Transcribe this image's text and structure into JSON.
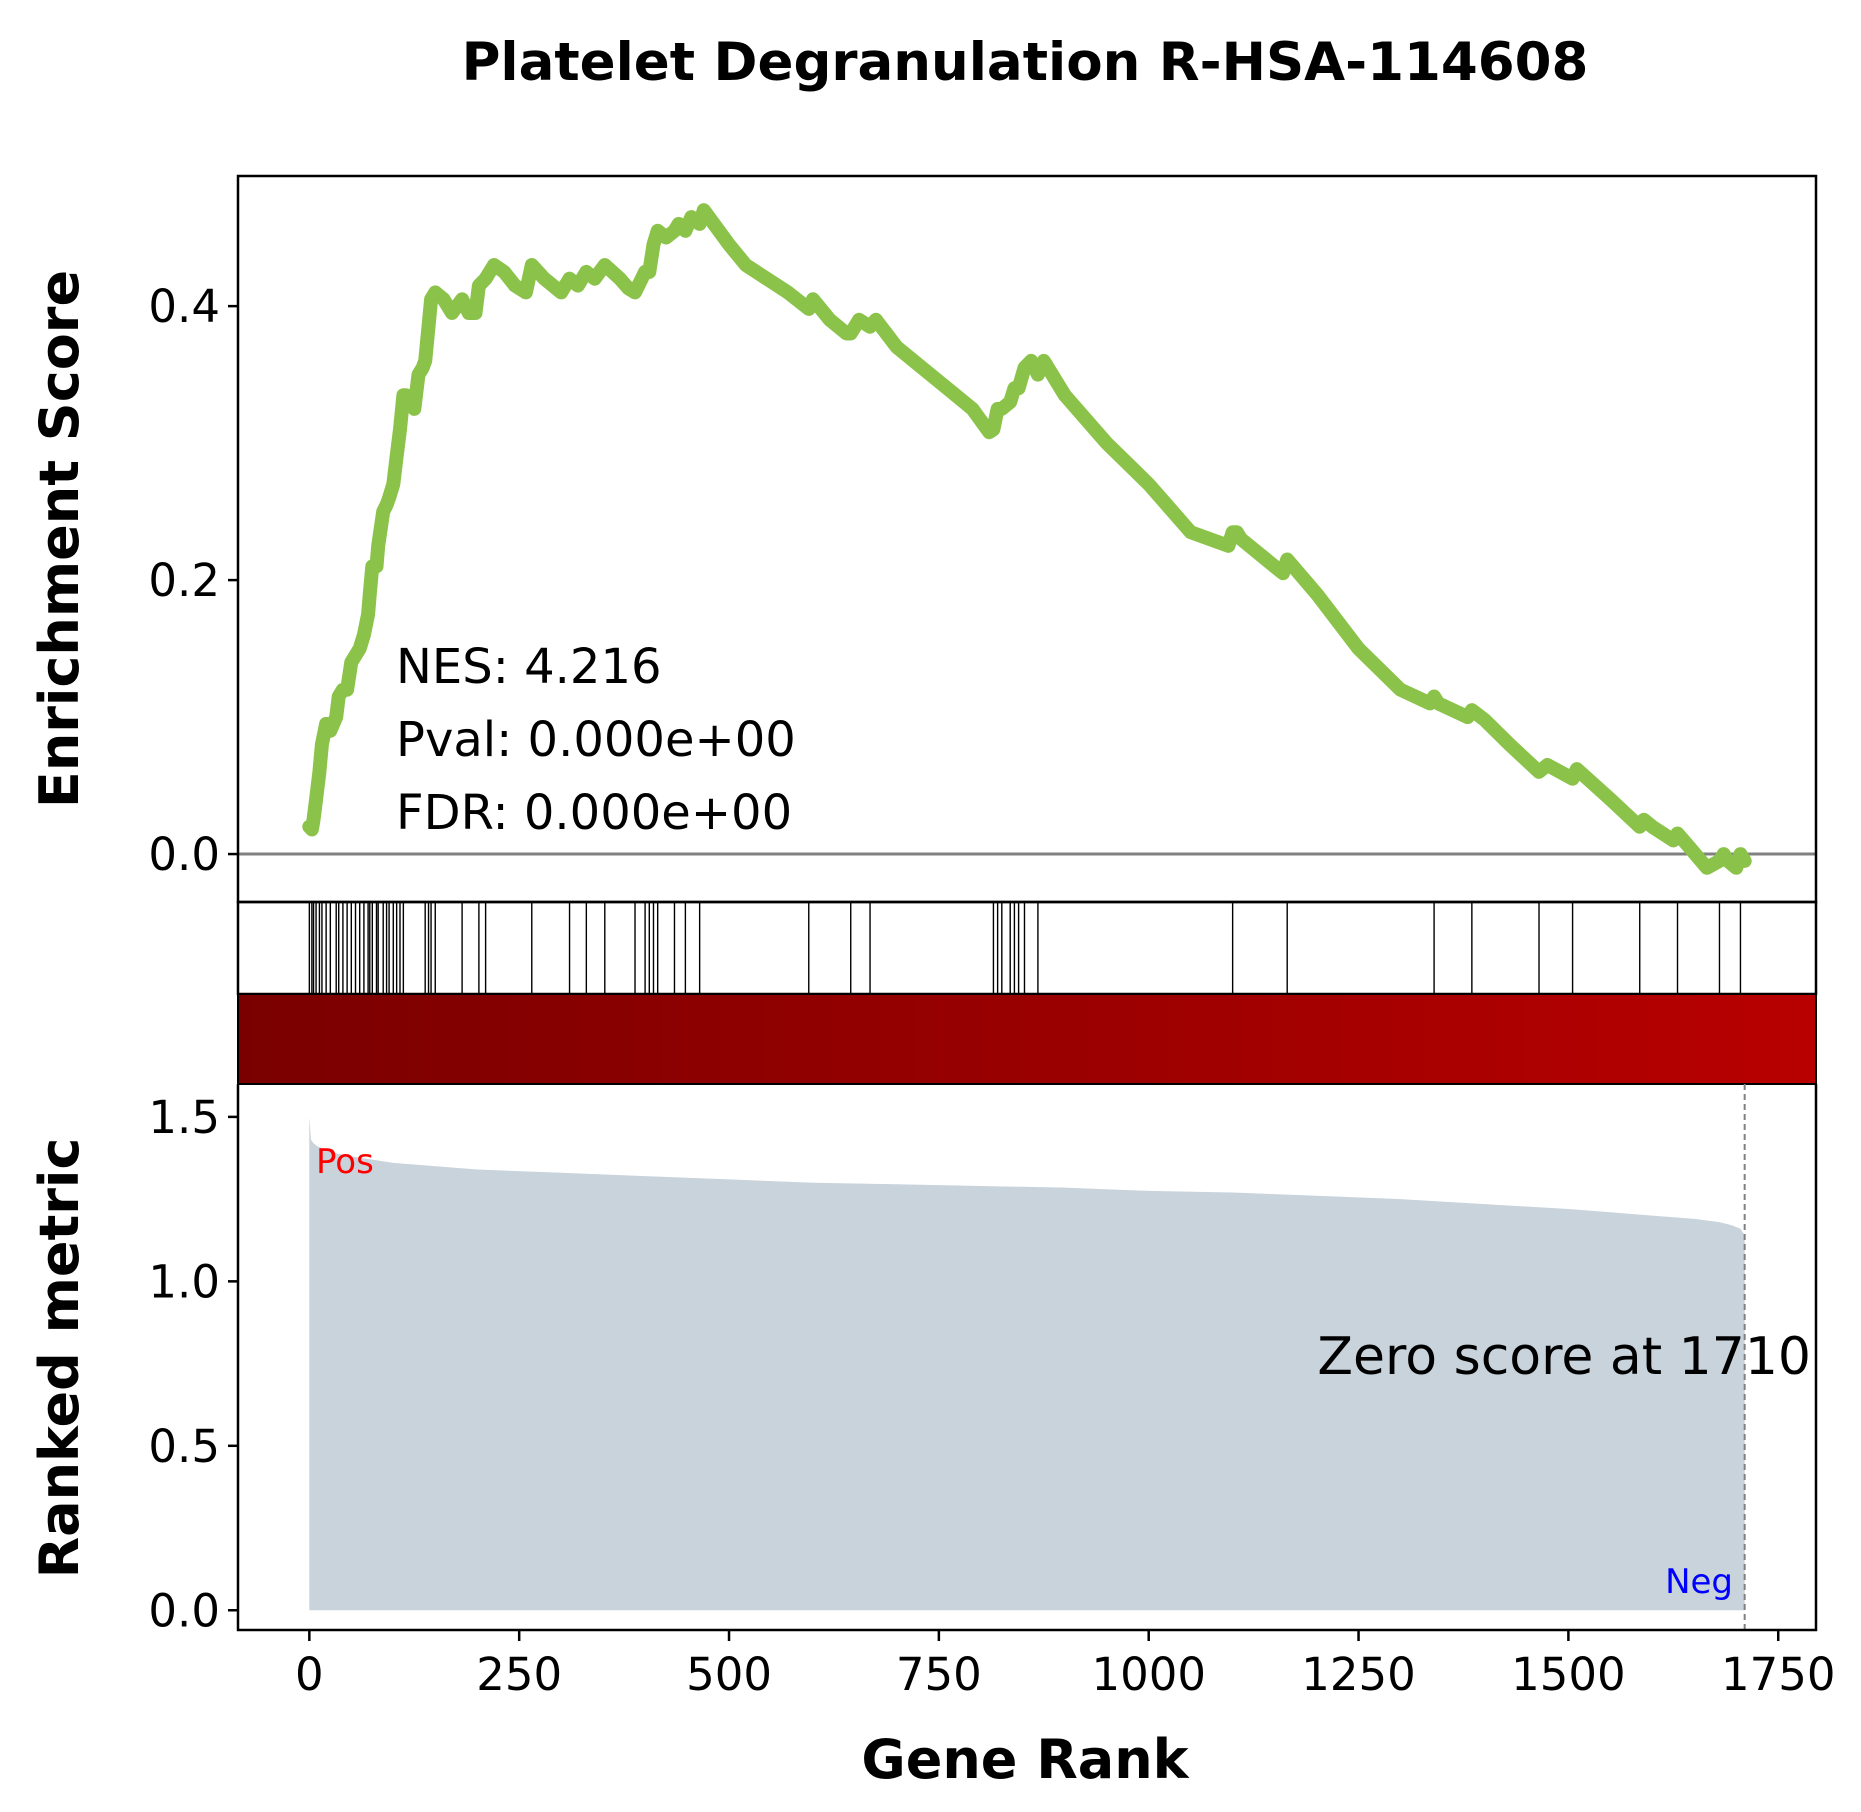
{
  "colors": {
    "es_line": "#8bc34a",
    "baseline": "#808080",
    "metric_fill": "#c8d3dc",
    "bar_dark": "#7a0000",
    "bar_light": "#b80000",
    "pos_label": "#ff0000",
    "neg_label": "#0000ff"
  },
  "chart_data": {
    "title": "Platelet Degranulation R-HSA-114608",
    "xlabel": "Gene Rank",
    "panels": [
      {
        "type": "line",
        "name": "enrichment",
        "ylabel": "Enrichment Score",
        "xlim": [
          -85,
          1795
        ],
        "ylim": [
          -0.035,
          0.495
        ],
        "yticks": [
          "0.0",
          "0.2",
          "0.4"
        ],
        "ytick_values": [
          0.0,
          0.2,
          0.4
        ],
        "annotations": [
          "NES: 4.216",
          "Pval: 0.000e+00",
          "FDR: 0.000e+00"
        ],
        "x": [
          0,
          3,
          5,
          8,
          12,
          15,
          20,
          25,
          32,
          35,
          40,
          45,
          50,
          55,
          60,
          65,
          70,
          72,
          75,
          80,
          82,
          88,
          92,
          95,
          100,
          104,
          108,
          112,
          115,
          120,
          125,
          130,
          135,
          138,
          142,
          145,
          150,
          160,
          170,
          182,
          190,
          198,
          202,
          210,
          220,
          232,
          245,
          258,
          265,
          280,
          300,
          310,
          320,
          330,
          340,
          352,
          370,
          380,
          388,
          400,
          405,
          410,
          415,
          425,
          435,
          440,
          448,
          455,
          465,
          470,
          500,
          520,
          570,
          595,
          600,
          620,
          640,
          645,
          655,
          668,
          675,
          700,
          750,
          790,
          810,
          815,
          820,
          825,
          835,
          840,
          845,
          852,
          860,
          868,
          875,
          900,
          950,
          1000,
          1050,
          1095,
          1100,
          1105,
          1110,
          1150,
          1160,
          1165,
          1200,
          1250,
          1300,
          1335,
          1340,
          1345,
          1380,
          1385,
          1400,
          1430,
          1465,
          1475,
          1505,
          1510,
          1550,
          1585,
          1590,
          1600,
          1625,
          1630,
          1640,
          1665,
          1680,
          1685,
          1690,
          1700,
          1705,
          1710
        ],
        "y": [
          0.02,
          0.018,
          0.025,
          0.04,
          0.06,
          0.08,
          0.095,
          0.09,
          0.1,
          0.115,
          0.12,
          0.12,
          0.14,
          0.145,
          0.15,
          0.16,
          0.175,
          0.19,
          0.21,
          0.21,
          0.225,
          0.25,
          0.255,
          0.26,
          0.27,
          0.29,
          0.31,
          0.335,
          0.335,
          0.33,
          0.325,
          0.35,
          0.355,
          0.36,
          0.385,
          0.405,
          0.41,
          0.405,
          0.395,
          0.405,
          0.395,
          0.395,
          0.415,
          0.42,
          0.43,
          0.425,
          0.415,
          0.41,
          0.43,
          0.42,
          0.41,
          0.42,
          0.415,
          0.425,
          0.42,
          0.43,
          0.42,
          0.413,
          0.41,
          0.425,
          0.425,
          0.445,
          0.455,
          0.45,
          0.455,
          0.46,
          0.455,
          0.465,
          0.46,
          0.47,
          0.445,
          0.43,
          0.41,
          0.398,
          0.405,
          0.39,
          0.38,
          0.38,
          0.39,
          0.385,
          0.39,
          0.37,
          0.345,
          0.325,
          0.308,
          0.31,
          0.325,
          0.325,
          0.33,
          0.34,
          0.34,
          0.355,
          0.36,
          0.35,
          0.36,
          0.335,
          0.3,
          0.27,
          0.235,
          0.225,
          0.235,
          0.235,
          0.23,
          0.21,
          0.205,
          0.215,
          0.19,
          0.15,
          0.12,
          0.11,
          0.115,
          0.11,
          0.1,
          0.105,
          0.098,
          0.08,
          0.06,
          0.065,
          0.055,
          0.062,
          0.04,
          0.02,
          0.025,
          0.02,
          0.01,
          0.015,
          0.008,
          -0.01,
          -0.005,
          0.0,
          -0.005,
          -0.01,
          0.0,
          -0.005
        ]
      },
      {
        "type": "rug",
        "name": "hits",
        "hits": [
          0,
          3,
          5,
          8,
          12,
          15,
          20,
          25,
          32,
          35,
          40,
          45,
          50,
          55,
          60,
          65,
          70,
          72,
          75,
          80,
          82,
          88,
          92,
          95,
          100,
          104,
          108,
          112,
          138,
          142,
          145,
          150,
          182,
          202,
          210,
          265,
          310,
          330,
          352,
          388,
          400,
          405,
          410,
          415,
          435,
          448,
          465,
          595,
          645,
          668,
          815,
          820,
          825,
          835,
          840,
          845,
          852,
          868,
          1100,
          1165,
          1340,
          1385,
          1465,
          1505,
          1585,
          1630,
          1680,
          1705
        ]
      },
      {
        "type": "area",
        "name": "ranked_metric",
        "ylabel": "Ranked metric",
        "ylim": [
          -0.06,
          1.6
        ],
        "yticks": [
          "0.0",
          "0.5",
          "1.0",
          "1.5"
        ],
        "ytick_values": [
          0.0,
          0.5,
          1.0,
          1.5
        ],
        "x": [
          0,
          2,
          5,
          10,
          20,
          30,
          50,
          100,
          200,
          300,
          400,
          500,
          600,
          700,
          800,
          900,
          1000,
          1100,
          1200,
          1300,
          1400,
          1500,
          1550,
          1600,
          1650,
          1680,
          1695,
          1705,
          1710
        ],
        "values": [
          1.5,
          1.43,
          1.42,
          1.41,
          1.4,
          1.39,
          1.38,
          1.36,
          1.34,
          1.33,
          1.32,
          1.31,
          1.3,
          1.295,
          1.29,
          1.285,
          1.275,
          1.27,
          1.26,
          1.25,
          1.235,
          1.22,
          1.21,
          1.2,
          1.19,
          1.18,
          1.17,
          1.16,
          1.14
        ],
        "pos_label": "Pos",
        "neg_label": "Neg",
        "zero_cross_label": "Zero score at 1710",
        "zero_cross_x": 1710
      }
    ],
    "xticks": [
      "0",
      "250",
      "500",
      "750",
      "1000",
      "1250",
      "1500",
      "1750"
    ],
    "xtick_values": [
      0,
      250,
      500,
      750,
      1000,
      1250,
      1500,
      1750
    ]
  }
}
